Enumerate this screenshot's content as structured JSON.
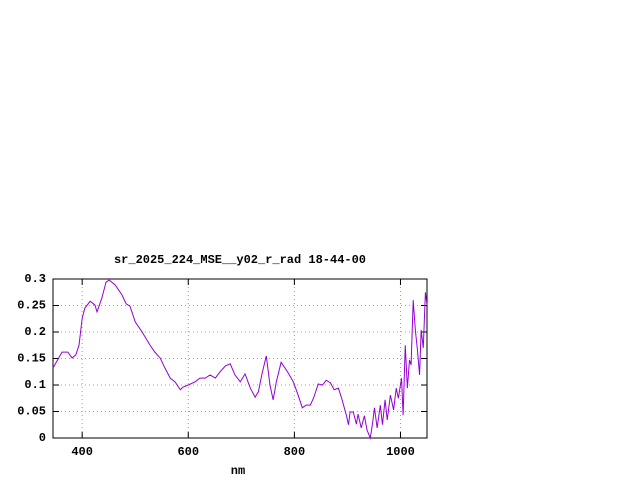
{
  "chart_data": {
    "type": "line",
    "title": "sr_2025_224_MSE__y02_r_rad 18-44-00",
    "x_label": "nm",
    "x": [
      345,
      362,
      373,
      381,
      388,
      394,
      400,
      405,
      415,
      424,
      428,
      437,
      445,
      451,
      462,
      475,
      483,
      490,
      500,
      513,
      528,
      537,
      547,
      556,
      566,
      575,
      585,
      590,
      600,
      613,
      622,
      632,
      641,
      651,
      660,
      670,
      679,
      688,
      698,
      707,
      717,
      726,
      732,
      739,
      747,
      754,
      760,
      766,
      775,
      787,
      798,
      807,
      815,
      822,
      830,
      836,
      845,
      853,
      860,
      868,
      875,
      883,
      890,
      898,
      902,
      905,
      911,
      917,
      920,
      926,
      932,
      937,
      943,
      947,
      951,
      956,
      962,
      966,
      971,
      975,
      981,
      987,
      992,
      996,
      1002,
      1005,
      1009,
      1013,
      1017,
      1020,
      1024,
      1028,
      1032,
      1036,
      1039,
      1043,
      1047,
      1050
    ],
    "series": [
      {
        "color": "#9400d3",
        "values": [
          0.132,
          0.162,
          0.162,
          0.151,
          0.157,
          0.175,
          0.226,
          0.245,
          0.258,
          0.251,
          0.238,
          0.264,
          0.294,
          0.298,
          0.289,
          0.27,
          0.253,
          0.249,
          0.219,
          0.2,
          0.175,
          0.162,
          0.151,
          0.132,
          0.113,
          0.106,
          0.091,
          0.096,
          0.1,
          0.106,
          0.113,
          0.113,
          0.119,
          0.113,
          0.125,
          0.136,
          0.14,
          0.119,
          0.106,
          0.121,
          0.094,
          0.077,
          0.087,
          0.121,
          0.155,
          0.1,
          0.072,
          0.106,
          0.143,
          0.125,
          0.106,
          0.081,
          0.057,
          0.062,
          0.062,
          0.075,
          0.102,
          0.1,
          0.109,
          0.104,
          0.091,
          0.094,
          0.072,
          0.043,
          0.025,
          0.049,
          0.049,
          0.026,
          0.045,
          0.019,
          0.042,
          0.015,
          0,
          0.025,
          0.057,
          0.019,
          0.062,
          0.025,
          0.072,
          0.034,
          0.081,
          0.053,
          0.094,
          0.075,
          0.113,
          0.043,
          0.175,
          0.094,
          0.147,
          0.138,
          0.26,
          0.204,
          0.166,
          0.119,
          0.204,
          0.17,
          0.275,
          0.251
        ]
      }
    ],
    "xlim": [
      345,
      1050
    ],
    "ylim": [
      0,
      0.3
    ],
    "xticks": [
      400,
      600,
      800,
      1000
    ],
    "yticks": [
      0,
      0.05,
      0.1,
      0.15,
      0.2,
      0.25,
      0.3
    ],
    "grid": true
  }
}
